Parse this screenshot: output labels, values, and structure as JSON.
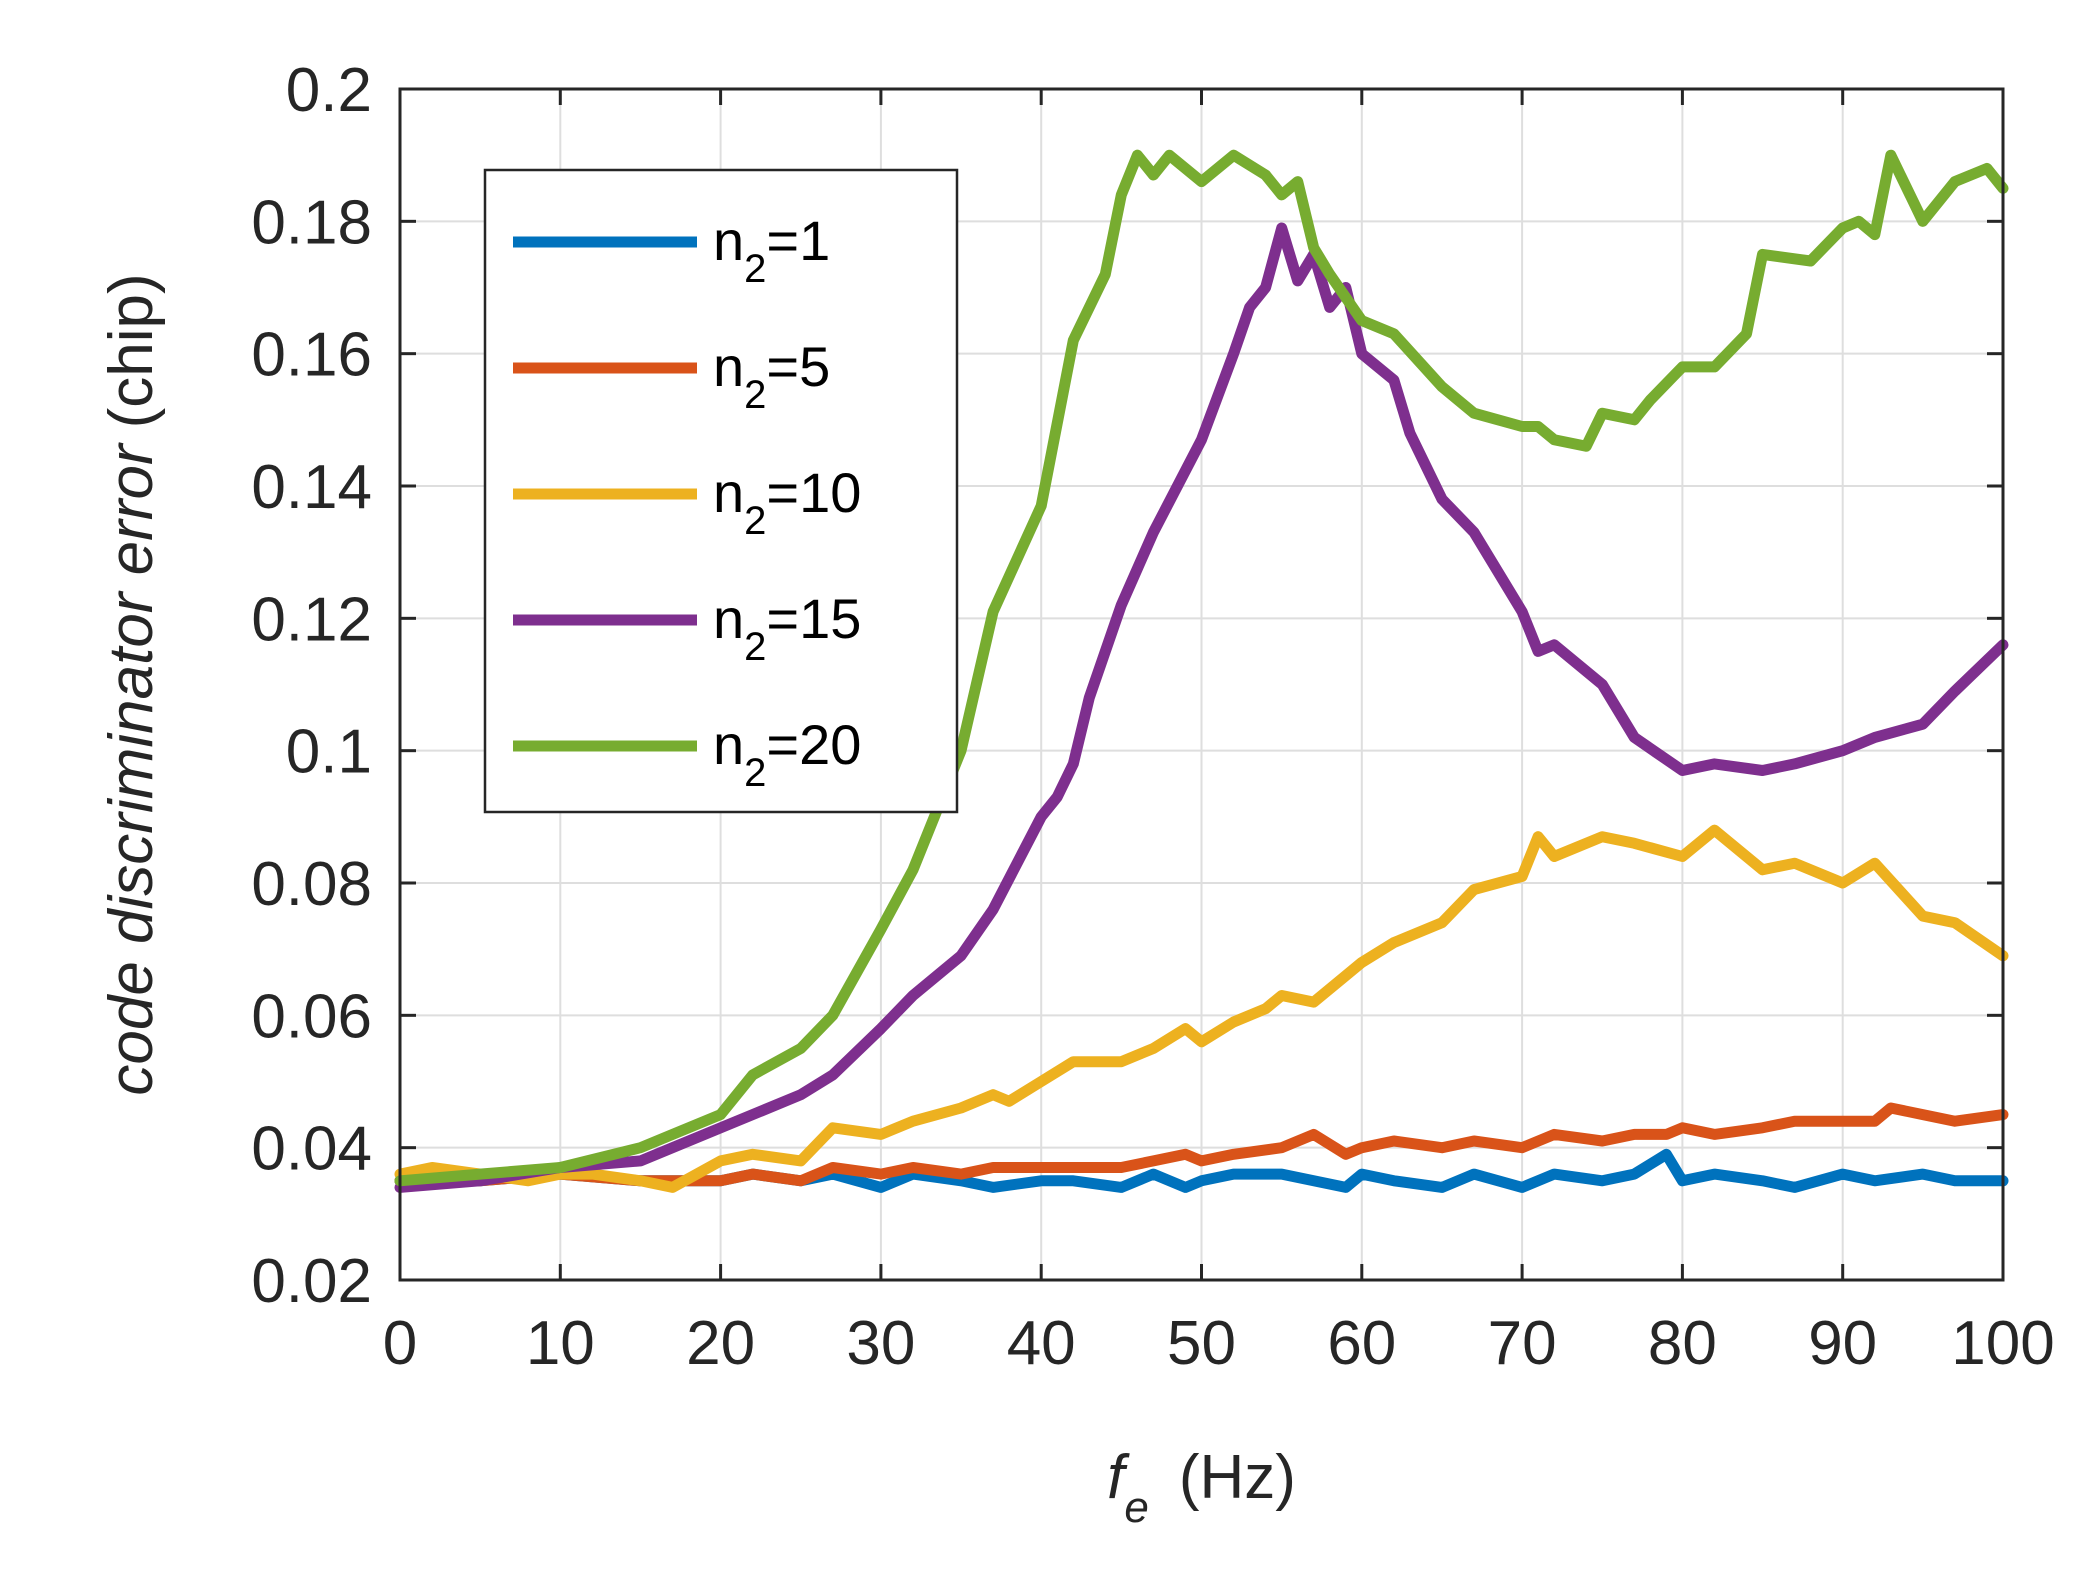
{
  "chart_data": {
    "type": "line",
    "title": "",
    "xlabel": {
      "symbol": "f",
      "subscript": "e",
      "unit": "(Hz)"
    },
    "ylabel": {
      "italic_part": "code discriminator error",
      "unit_part": "(chip)"
    },
    "xlim": [
      0,
      100
    ],
    "ylim": [
      0.02,
      0.2
    ],
    "grid": true,
    "legend_position": "top-left",
    "x_ticks": [
      0,
      10,
      20,
      30,
      40,
      50,
      60,
      70,
      80,
      90,
      100
    ],
    "x_tick_labels": [
      "0",
      "10",
      "20",
      "30",
      "40",
      "50",
      "60",
      "70",
      "80",
      "90",
      "100"
    ],
    "y_ticks": [
      0.02,
      0.04,
      0.06,
      0.08,
      0.1,
      0.12,
      0.14,
      0.16,
      0.18,
      0.2
    ],
    "y_tick_labels": [
      "0.02",
      "0.04",
      "0.06",
      "0.08",
      "0.1",
      "0.12",
      "0.14",
      "0.16",
      "0.18",
      "0.2"
    ],
    "series": [
      {
        "name": "n2=1",
        "label_base": "n",
        "label_sub": "2",
        "label_rest": "=1",
        "color": "#0072BD",
        "x": [
          0,
          5,
          10,
          15,
          20,
          22,
          25,
          27,
          30,
          32,
          35,
          37,
          40,
          42,
          45,
          47,
          49,
          50,
          52,
          55,
          57,
          59,
          60,
          62,
          65,
          67,
          70,
          72,
          75,
          77,
          79,
          80,
          82,
          85,
          87,
          90,
          92,
          95,
          97,
          100
        ],
        "y": [
          0.035,
          0.035,
          0.036,
          0.035,
          0.035,
          0.036,
          0.035,
          0.036,
          0.034,
          0.036,
          0.035,
          0.034,
          0.035,
          0.035,
          0.034,
          0.036,
          0.034,
          0.035,
          0.036,
          0.036,
          0.035,
          0.034,
          0.036,
          0.035,
          0.034,
          0.036,
          0.034,
          0.036,
          0.035,
          0.036,
          0.039,
          0.035,
          0.036,
          0.035,
          0.034,
          0.036,
          0.035,
          0.036,
          0.035,
          0.035
        ]
      },
      {
        "name": "n2=5",
        "label_base": "n",
        "label_sub": "2",
        "label_rest": "=5",
        "color": "#D95319",
        "x": [
          0,
          5,
          10,
          15,
          20,
          22,
          25,
          27,
          30,
          32,
          35,
          37,
          40,
          42,
          45,
          47,
          49,
          50,
          52,
          55,
          57,
          59,
          60,
          62,
          65,
          67,
          70,
          72,
          75,
          77,
          79,
          80,
          82,
          85,
          87,
          90,
          92,
          93,
          95,
          97,
          100
        ],
        "y": [
          0.035,
          0.035,
          0.036,
          0.035,
          0.035,
          0.036,
          0.035,
          0.037,
          0.036,
          0.037,
          0.036,
          0.037,
          0.037,
          0.037,
          0.037,
          0.038,
          0.039,
          0.038,
          0.039,
          0.04,
          0.042,
          0.039,
          0.04,
          0.041,
          0.04,
          0.041,
          0.04,
          0.042,
          0.041,
          0.042,
          0.042,
          0.043,
          0.042,
          0.043,
          0.044,
          0.044,
          0.044,
          0.046,
          0.045,
          0.044,
          0.045
        ]
      },
      {
        "name": "n2=10",
        "label_base": "n",
        "label_sub": "2",
        "label_rest": "=10",
        "color": "#EDB120",
        "x": [
          0,
          2,
          5,
          8,
          10,
          12,
          15,
          17,
          20,
          22,
          25,
          27,
          30,
          32,
          35,
          37,
          38,
          40,
          42,
          45,
          47,
          49,
          50,
          52,
          54,
          55,
          57,
          59,
          60,
          62,
          65,
          67,
          70,
          71,
          72,
          75,
          77,
          80,
          82,
          85,
          87,
          90,
          92,
          95,
          97,
          100
        ],
        "y": [
          0.036,
          0.037,
          0.036,
          0.035,
          0.036,
          0.036,
          0.035,
          0.034,
          0.038,
          0.039,
          0.038,
          0.043,
          0.042,
          0.044,
          0.046,
          0.048,
          0.047,
          0.05,
          0.053,
          0.053,
          0.055,
          0.058,
          0.056,
          0.059,
          0.061,
          0.063,
          0.062,
          0.066,
          0.068,
          0.071,
          0.074,
          0.079,
          0.081,
          0.087,
          0.084,
          0.087,
          0.086,
          0.084,
          0.088,
          0.082,
          0.083,
          0.08,
          0.083,
          0.075,
          0.074,
          0.069
        ]
      },
      {
        "name": "n2=15",
        "label_base": "n",
        "label_sub": "2",
        "label_rest": "=15",
        "color": "#7E2F8E",
        "x": [
          0,
          5,
          10,
          15,
          20,
          22,
          25,
          27,
          30,
          32,
          35,
          37,
          40,
          41,
          42,
          43,
          45,
          47,
          50,
          52,
          53,
          54,
          55,
          56,
          57,
          58,
          59,
          60,
          62,
          63,
          65,
          67,
          70,
          71,
          72,
          75,
          77,
          80,
          82,
          85,
          87,
          90,
          92,
          95,
          97,
          100
        ],
        "y": [
          0.034,
          0.035,
          0.037,
          0.038,
          0.043,
          0.045,
          0.048,
          0.051,
          0.058,
          0.063,
          0.069,
          0.076,
          0.09,
          0.093,
          0.098,
          0.108,
          0.122,
          0.133,
          0.147,
          0.16,
          0.167,
          0.17,
          0.179,
          0.171,
          0.175,
          0.167,
          0.17,
          0.16,
          0.156,
          0.148,
          0.138,
          0.133,
          0.121,
          0.115,
          0.116,
          0.11,
          0.102,
          0.097,
          0.098,
          0.097,
          0.098,
          0.1,
          0.102,
          0.104,
          0.109,
          0.116
        ]
      },
      {
        "name": "n2=20",
        "label_base": "n",
        "label_sub": "2",
        "label_rest": "=20",
        "color": "#77AC30",
        "x": [
          0,
          5,
          10,
          15,
          17,
          20,
          22,
          25,
          27,
          30,
          32,
          35,
          37,
          40,
          42,
          44,
          45,
          46,
          47,
          48,
          50,
          52,
          54,
          55,
          56,
          57,
          58,
          60,
          62,
          65,
          67,
          70,
          71,
          72,
          74,
          75,
          77,
          78,
          80,
          82,
          84,
          85,
          88,
          90,
          91,
          92,
          93,
          95,
          97,
          99,
          100
        ],
        "y": [
          0.035,
          0.036,
          0.037,
          0.04,
          0.042,
          0.045,
          0.051,
          0.055,
          0.06,
          0.073,
          0.082,
          0.1,
          0.121,
          0.137,
          0.162,
          0.172,
          0.184,
          0.19,
          0.187,
          0.19,
          0.186,
          0.19,
          0.187,
          0.184,
          0.186,
          0.176,
          0.172,
          0.165,
          0.163,
          0.155,
          0.151,
          0.149,
          0.149,
          0.147,
          0.146,
          0.151,
          0.15,
          0.153,
          0.158,
          0.158,
          0.163,
          0.175,
          0.174,
          0.179,
          0.18,
          0.178,
          0.19,
          0.18,
          0.186,
          0.188,
          0.185
        ]
      }
    ]
  }
}
